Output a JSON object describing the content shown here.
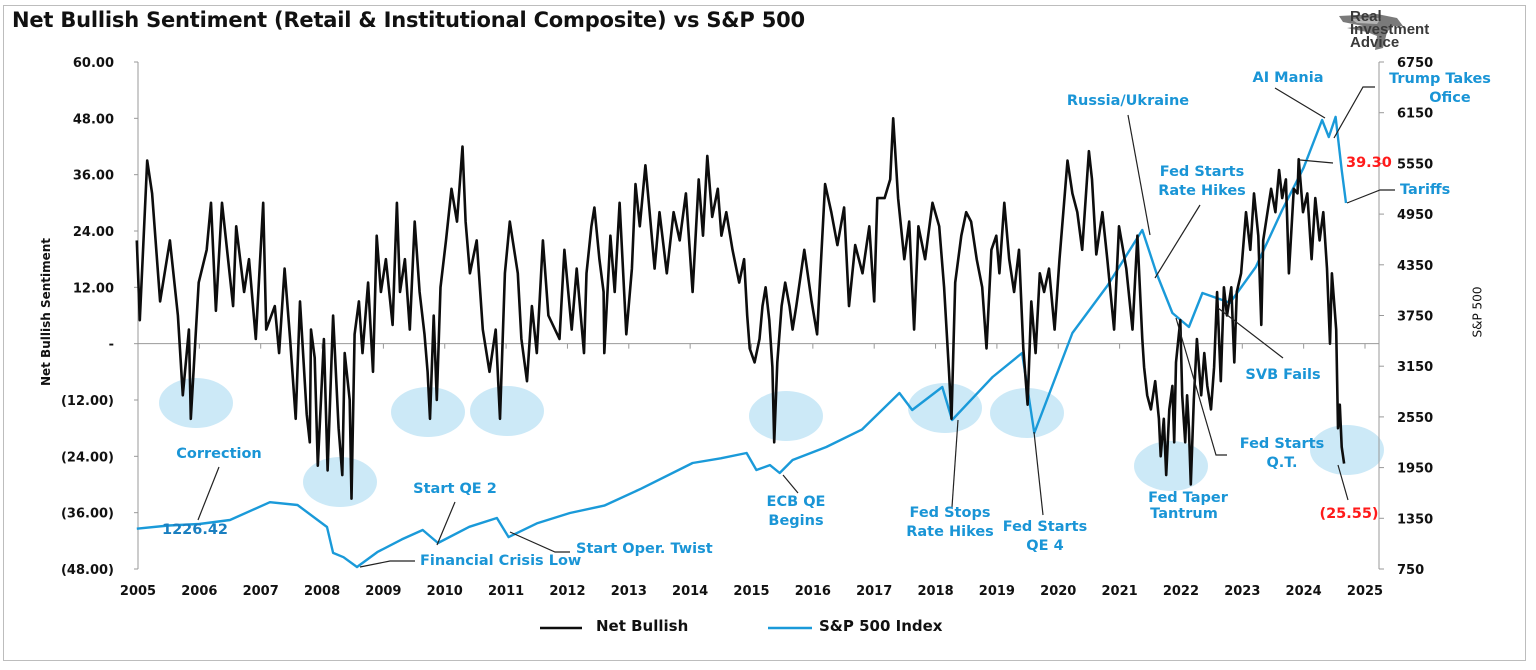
{
  "title": "Net Bullish Sentiment (Retail & Institutional Composite) vs S&P 500",
  "logo": {
    "text": "Real Investment Advice"
  },
  "colors": {
    "net_bullish": "#0d0d0d",
    "sp500": "#1a9ad9",
    "highlight": "#bfe3f5",
    "callout_red": "#ff1a1a",
    "annotation": "#1a95d6"
  },
  "chart_data": {
    "type": "line",
    "title": "Net Bullish Sentiment (Retail & Institutional Composite) vs S&P 500",
    "x_tick_labels": [
      "2005",
      "2006",
      "2007",
      "2008",
      "2009",
      "2010",
      "2011",
      "2012",
      "2013",
      "2014",
      "2015",
      "2016",
      "2017",
      "2018",
      "2019",
      "2020",
      "2021",
      "2022",
      "2023",
      "2024",
      "2025"
    ],
    "xlim": [
      2005,
      2025.2
    ],
    "left_axis": {
      "label": "Net Bullish Sentiment",
      "ylim": [
        -48,
        60
      ],
      "tick_labels": [
        "60.00",
        "48.00",
        "36.00",
        "24.00",
        "12.00",
        "-",
        "(12.00)",
        "(24.00)",
        "(36.00)",
        "(48.00)"
      ],
      "tick_values": [
        60,
        48,
        36,
        24,
        12,
        0,
        -12,
        -24,
        -36,
        -48
      ]
    },
    "right_axis": {
      "label": "S&P 500",
      "ylim": [
        750,
        6750
      ],
      "tick_labels": [
        "6750",
        "6150",
        "5550",
        "4950",
        "4350",
        "3750",
        "3150",
        "2550",
        "1950",
        "1350",
        "750"
      ],
      "tick_values": [
        6750,
        6150,
        5550,
        4950,
        4350,
        3750,
        3150,
        2550,
        1950,
        1350,
        750
      ]
    },
    "grid": false,
    "legend_position": "bottom",
    "series": [
      {
        "name": "Net Bullish",
        "axis": "left",
        "x": [
          2004.98,
          2005.03,
          2005.15,
          2005.23,
          2005.36,
          2005.52,
          2005.65,
          2005.73,
          2005.83,
          2005.86,
          2005.99,
          2006.12,
          2006.19,
          2006.27,
          2006.37,
          2006.55,
          2006.6,
          2006.73,
          2006.81,
          2006.92,
          2007.04,
          2007.09,
          2007.23,
          2007.3,
          2007.39,
          2007.48,
          2007.57,
          2007.64,
          2007.75,
          2007.8,
          2007.82,
          2007.88,
          2007.93,
          2008.03,
          2008.09,
          2008.18,
          2008.27,
          2008.33,
          2008.37,
          2008.45,
          2008.48,
          2008.53,
          2008.6,
          2008.66,
          2008.75,
          2008.83,
          2008.89,
          2008.96,
          2009.04,
          2009.15,
          2009.22,
          2009.27,
          2009.35,
          2009.43,
          2009.51,
          2009.59,
          2009.67,
          2009.72,
          2009.76,
          2009.82,
          2009.87,
          2009.93,
          2010.02,
          2010.11,
          2010.2,
          2010.29,
          2010.34,
          2010.41,
          2010.52,
          2010.62,
          2010.73,
          2010.83,
          2010.9,
          2010.98,
          2011.06,
          2011.19,
          2011.25,
          2011.34,
          2011.42,
          2011.5,
          2011.6,
          2011.69,
          2011.87,
          2011.95,
          2012.07,
          2012.15,
          2012.27,
          2012.31,
          2012.39,
          2012.44,
          2012.52,
          2012.59,
          2012.6,
          2012.7,
          2012.77,
          2012.85,
          2012.96,
          2013.05,
          2013.11,
          2013.18,
          2013.27,
          2013.32,
          2013.42,
          2013.5,
          2013.62,
          2013.73,
          2013.83,
          2013.93,
          2014.04,
          2014.14,
          2014.21,
          2014.28,
          2014.36,
          2014.45,
          2014.51,
          2014.59,
          2014.69,
          2014.8,
          2014.88,
          2014.93,
          2014.97,
          2015.05,
          2015.13,
          2015.18,
          2015.23,
          2015.29,
          2015.34,
          2015.37,
          2015.42,
          2015.49,
          2015.55,
          2015.62,
          2015.67,
          2015.73,
          2015.86,
          2015.98,
          2016.07,
          2016.2,
          2016.3,
          2016.4,
          2016.51,
          2016.59,
          2016.69,
          2016.81,
          2016.92,
          2017.0,
          2017.05,
          2017.17,
          2017.26,
          2017.31,
          2017.39,
          2017.49,
          2017.57,
          2017.65,
          2017.72,
          2017.83,
          2017.95,
          2018.06,
          2018.14,
          2018.22,
          2018.26,
          2018.32,
          2018.42,
          2018.5,
          2018.58,
          2018.67,
          2018.76,
          2018.83,
          2018.91,
          2018.99,
          2019.04,
          2019.12,
          2019.2,
          2019.28,
          2019.36,
          2019.43,
          2019.5,
          2019.56,
          2019.63,
          2019.7,
          2019.77,
          2019.85,
          2019.94,
          2020.02,
          2020.15,
          2020.23,
          2020.31,
          2020.39,
          2020.5,
          2020.55,
          2020.62,
          2020.72,
          2020.8,
          2020.91,
          2020.99,
          2021.11,
          2021.21,
          2021.29,
          2021.37,
          2021.4,
          2021.45,
          2021.51,
          2021.58,
          2021.64,
          2021.67,
          2021.72,
          2021.76,
          2021.81,
          2021.86,
          2021.89,
          2021.92,
          2021.99,
          2022.02,
          2022.07,
          2022.1,
          2022.13,
          2022.16,
          2022.21,
          2022.26,
          2022.33,
          2022.38,
          2022.43,
          2022.49,
          2022.54,
          2022.59,
          2022.65,
          2022.7,
          2022.75,
          2022.82,
          2022.87,
          2022.91,
          2022.98,
          2023.06,
          2023.13,
          2023.19,
          2023.26,
          2023.31,
          2023.34,
          2023.41,
          2023.47,
          2023.54,
          2023.6,
          2023.65,
          2023.71,
          2023.76,
          2023.84,
          2023.9,
          2023.92,
          2023.99,
          2024.06,
          2024.13,
          2024.19,
          2024.26,
          2024.32,
          2024.38,
          2024.43,
          2024.46,
          2024.53,
          2024.56,
          2024.59,
          2024.62,
          2024.66
        ],
        "values": [
          22,
          5,
          39,
          32,
          9,
          22,
          6,
          -11,
          3,
          -16,
          13,
          20,
          30,
          7,
          30,
          8,
          25,
          11,
          18,
          1,
          30,
          3,
          8,
          -2,
          16,
          1,
          -16,
          9,
          -15,
          -21,
          3,
          -3,
          -26,
          1,
          -27,
          6,
          -18,
          -28,
          -2,
          -12,
          -33,
          2,
          9,
          -2,
          13,
          -6,
          23,
          11,
          18,
          4,
          30,
          11,
          18,
          3,
          26,
          11,
          2,
          -6,
          -16,
          6,
          -12,
          12,
          22,
          33,
          26,
          42,
          26,
          15,
          22,
          3,
          -6,
          3,
          -16,
          15,
          26,
          15,
          1,
          -8,
          8,
          -2,
          22,
          6,
          1,
          20,
          3,
          16,
          -2,
          15,
          25,
          29,
          18,
          11,
          -2,
          23,
          11,
          30,
          2,
          16,
          34,
          25,
          38,
          31,
          16,
          28,
          15,
          28,
          22,
          32,
          11,
          35,
          23,
          40,
          27,
          33,
          23,
          28,
          20,
          13,
          18,
          6,
          -1,
          -4,
          1,
          8,
          12,
          5,
          -5,
          -21,
          -4,
          8,
          13,
          8,
          3,
          8,
          20,
          9,
          2,
          34,
          28,
          21,
          29,
          8,
          21,
          15,
          25,
          9,
          31,
          31,
          35,
          48,
          31,
          18,
          26,
          3,
          25,
          18,
          30,
          25,
          12,
          -6,
          -16,
          13,
          23,
          28,
          26,
          18,
          12,
          -1,
          20,
          23,
          15,
          30,
          18,
          11,
          20,
          -1,
          -13,
          9,
          -2,
          15,
          11,
          16,
          3,
          18,
          39,
          32,
          28,
          20,
          41,
          35,
          19,
          28,
          18,
          3,
          25,
          16,
          3,
          23,
          1,
          -5,
          -11,
          -14,
          -8,
          -16,
          -24,
          -16,
          -28,
          -14,
          -9,
          -21,
          -4,
          5,
          -11,
          -21,
          -11,
          -18,
          -30,
          -12,
          1,
          -11,
          -2,
          -9,
          -14,
          -5,
          11,
          -8,
          12,
          6,
          12,
          -4,
          11,
          15,
          28,
          20,
          32,
          23,
          4,
          22,
          28,
          33,
          28,
          37,
          31,
          35,
          15,
          33,
          32,
          39.3,
          28,
          32,
          18,
          31,
          22,
          28,
          16,
          0,
          15,
          3,
          -18,
          -13,
          -22,
          -25.55
        ]
      },
      {
        "name": "S&P 500 Index",
        "axis": "right",
        "x": [
          2004.98,
          2005.5,
          2006.0,
          2006.5,
          2007.15,
          2007.6,
          2008.08,
          2008.18,
          2008.35,
          2008.57,
          2008.9,
          2009.3,
          2009.64,
          2009.89,
          2010.4,
          2010.85,
          2011.04,
          2011.5,
          2012.04,
          2012.6,
          2013.2,
          2014.04,
          2014.5,
          2014.92,
          2015.08,
          2015.3,
          2015.46,
          2015.67,
          2016.22,
          2016.8,
          2017.41,
          2017.62,
          2018.11,
          2018.27,
          2018.93,
          2019.41,
          2019.61,
          2020.23,
          2020.8,
          2021.37,
          2021.6,
          2021.86,
          2022.13,
          2022.35,
          2022.8,
          2023.22,
          2023.65,
          2024.0,
          2024.3,
          2024.41,
          2024.52,
          2024.62,
          2024.69
        ],
        "values": [
          1226.42,
          1265,
          1282,
          1330,
          1540,
          1507,
          1247,
          940,
          890,
          774,
          950,
          1100,
          1211,
          1058,
          1250,
          1353,
          1128,
          1290,
          1413,
          1500,
          1700,
          2004,
          2060,
          2123,
          1922,
          1980,
          1886,
          2040,
          2194,
          2400,
          2833,
          2632,
          2904,
          2513,
          3022,
          3306,
          2360,
          3543,
          4100,
          4762,
          4253,
          3780,
          3614,
          4016,
          3900,
          4324,
          4999,
          5500,
          6064,
          5862,
          6100,
          5472,
          5081
        ]
      }
    ],
    "annotations": {
      "correction": "Correction",
      "start_value": "1226.42",
      "start_qe2": "Start QE 2",
      "financial_crisis_low": "Financial Crisis Low",
      "start_oper_twist": "Start Oper. Twist",
      "ecb_qe_1": "ECB QE",
      "ecb_qe_2": "Begins",
      "fed_stops_1": "Fed Stops",
      "fed_stops_2": "Rate Hikes",
      "fed_qe4_1": "Fed Starts",
      "fed_qe4_2": "QE 4",
      "russia_ukraine": "Russia/Ukraine",
      "fed_hikes_1": "Fed Starts",
      "fed_hikes_2": "Rate Hikes",
      "ai_mania": "AI Mania",
      "trump_1": "Trump Takes",
      "trump_2": "Ofice",
      "peak_value": "39.30",
      "tariffs": "Tariffs",
      "svb_fails": "SVB Fails",
      "taper_1": "Fed Taper",
      "taper_2": "Tantrum",
      "qt_1": "Fed Starts",
      "qt_2": "Q.T.",
      "last_value": "(25.55)"
    }
  },
  "legend": {
    "items": [
      {
        "label": "Net Bullish"
      },
      {
        "label": "S&P 500 Index"
      }
    ]
  }
}
